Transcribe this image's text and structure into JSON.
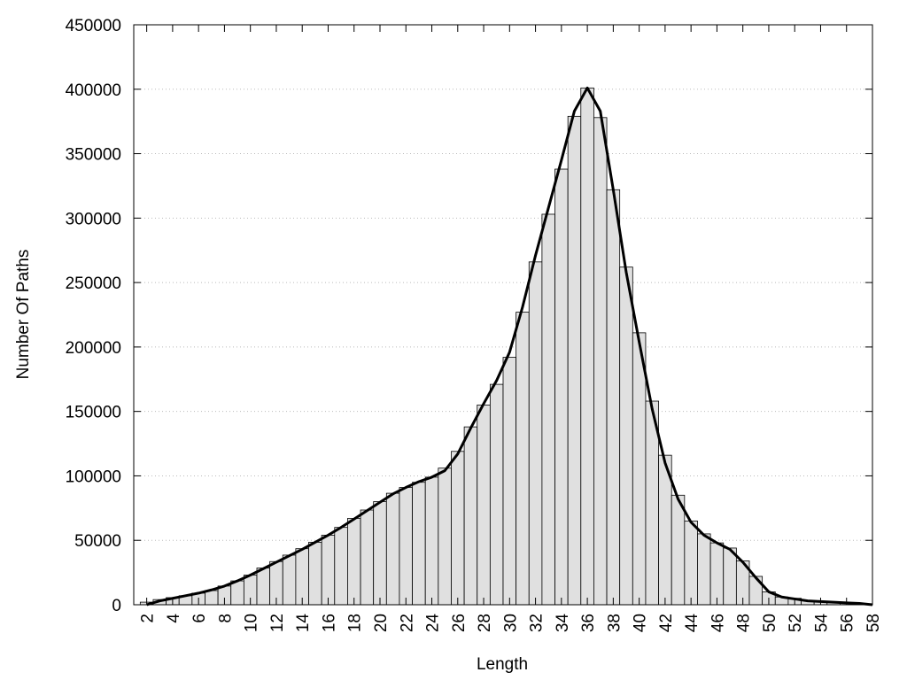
{
  "chart_data": {
    "type": "histogram",
    "xlabel": "Length",
    "ylabel": "Number Of Paths",
    "bins": [
      1.5,
      2.5,
      3.5,
      4.5,
      5.5,
      6.5,
      7.5,
      8.5,
      9.5,
      10.5,
      11.5,
      12.5,
      13.5,
      14.5,
      15.5,
      16.5,
      17.5,
      18.5,
      19.5,
      20.5,
      21.5,
      22.5,
      23.5,
      24.5,
      25.5,
      26.5,
      27.5,
      28.5,
      29.5,
      30.5,
      31.5,
      32.5,
      33.5,
      34.5,
      35.5,
      36.5,
      37.5,
      38.5,
      39.5,
      40.5,
      41.5,
      42.5,
      43.5,
      44.5,
      45.5,
      46.5,
      47.5,
      48.5,
      49.5,
      50.5,
      51.5,
      52.5,
      53.5,
      54.5,
      55.5,
      56.5,
      57.5
    ],
    "values": [
      2000,
      4000,
      5500,
      7000,
      9000,
      11000,
      14500,
      18500,
      23000,
      28500,
      33500,
      38500,
      43500,
      48500,
      54000,
      60000,
      67000,
      73500,
      80000,
      86500,
      91000,
      95000,
      99000,
      106000,
      119000,
      138000,
      155000,
      171000,
      192000,
      227000,
      266000,
      303000,
      338000,
      379000,
      401000,
      378000,
      322000,
      262000,
      211000,
      158000,
      116000,
      85000,
      65000,
      55000,
      48000,
      44000,
      34000,
      22000,
      10000,
      6000,
      5000,
      3000,
      2500,
      2000,
      1500,
      1000
    ],
    "color": "#e0e0e0",
    "line": {
      "color": "#000000",
      "x": [
        2,
        3,
        4,
        5,
        6,
        7,
        8,
        9,
        10,
        11,
        12,
        13,
        14,
        15,
        16,
        17,
        18,
        19,
        20,
        21,
        22,
        23,
        24,
        25,
        26,
        27,
        28,
        29,
        30,
        31,
        32,
        33,
        34,
        35,
        36,
        37,
        38,
        39,
        40,
        41,
        42,
        43,
        44,
        45,
        46,
        47,
        48,
        49,
        50,
        51,
        52,
        53,
        54,
        55,
        56,
        57,
        58
      ],
      "values": [
        0,
        3000,
        5000,
        7000,
        9000,
        11500,
        14500,
        18500,
        23000,
        28000,
        33000,
        38000,
        43000,
        48500,
        54000,
        60000,
        66500,
        73000,
        79500,
        86000,
        91000,
        95500,
        99000,
        104000,
        117000,
        137000,
        156000,
        174000,
        196000,
        231000,
        271000,
        308000,
        345000,
        383000,
        401000,
        383000,
        322000,
        258000,
        204000,
        152000,
        110000,
        82000,
        64000,
        54000,
        48000,
        43000,
        33000,
        21000,
        10000,
        6000,
        4500,
        3000,
        2500,
        2000,
        1500,
        1000,
        0
      ]
    },
    "xlim": [
      1,
      58
    ],
    "xticks": [
      2,
      4,
      6,
      8,
      10,
      12,
      14,
      16,
      18,
      20,
      22,
      24,
      26,
      28,
      30,
      32,
      34,
      36,
      38,
      40,
      42,
      44,
      46,
      48,
      50,
      52,
      54,
      56,
      58
    ],
    "ylim": [
      0,
      450000
    ],
    "yticks": [
      0,
      50000,
      100000,
      150000,
      200000,
      250000,
      300000,
      350000,
      400000,
      450000
    ],
    "grid": true
  }
}
